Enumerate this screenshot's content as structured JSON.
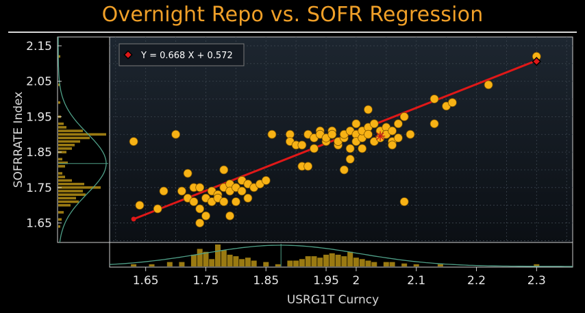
{
  "title": "Overnight Repo vs. SOFR Regression",
  "legend": {
    "label": "Y = 0.668 X + 0.572"
  },
  "colors": {
    "accent": "#f0a028",
    "points": "#f7b215",
    "regression_line": "#e01818",
    "histogram": "#9a7a12",
    "density_curve": "#4fa088",
    "panel_background": "#141a22"
  },
  "chart_data": {
    "type": "scatter",
    "title": "Overnight Repo vs. SOFR Regression",
    "xlabel": "USRG1T Curncy",
    "ylabel": "SOFRRATE Index",
    "xlim": [
      1.59,
      2.36
    ],
    "ylim": [
      1.595,
      2.175
    ],
    "xticks": [
      1.65,
      1.75,
      1.85,
      1.95,
      2,
      2.1,
      2.2,
      2.3
    ],
    "xtick_labels": [
      "1.65",
      "1.75",
      "1.85",
      "1.95",
      "2",
      "2.1",
      "2.2",
      "2.3"
    ],
    "yticks": [
      1.65,
      1.75,
      1.85,
      1.95,
      2.05,
      2.15
    ],
    "ytick_labels": [
      "1.65",
      "1.75",
      "1.85",
      "1.95",
      "2.05",
      "2.15"
    ],
    "grid": true,
    "legend_position": "top-left",
    "regression": {
      "slope": 0.668,
      "intercept": 0.572,
      "x_start": 1.63,
      "x_end": 2.3
    },
    "mean_marker": {
      "x": 2.04,
      "y": 1.895
    },
    "highlighted_point": {
      "x": 2.3,
      "y": 2.106
    },
    "points": [
      [
        1.63,
        1.88
      ],
      [
        1.64,
        1.7
      ],
      [
        1.67,
        1.69
      ],
      [
        1.68,
        1.74
      ],
      [
        1.7,
        1.9
      ],
      [
        1.71,
        1.74
      ],
      [
        1.72,
        1.72
      ],
      [
        1.72,
        1.79
      ],
      [
        1.73,
        1.75
      ],
      [
        1.73,
        1.71
      ],
      [
        1.74,
        1.69
      ],
      [
        1.74,
        1.75
      ],
      [
        1.74,
        1.65
      ],
      [
        1.75,
        1.67
      ],
      [
        1.75,
        1.72
      ],
      [
        1.76,
        1.74
      ],
      [
        1.76,
        1.71
      ],
      [
        1.77,
        1.73
      ],
      [
        1.77,
        1.72
      ],
      [
        1.78,
        1.75
      ],
      [
        1.78,
        1.71
      ],
      [
        1.78,
        1.8
      ],
      [
        1.79,
        1.76
      ],
      [
        1.79,
        1.74
      ],
      [
        1.79,
        1.67
      ],
      [
        1.8,
        1.75
      ],
      [
        1.8,
        1.71
      ],
      [
        1.81,
        1.77
      ],
      [
        1.81,
        1.74
      ],
      [
        1.82,
        1.76
      ],
      [
        1.82,
        1.72
      ],
      [
        1.83,
        1.75
      ],
      [
        1.84,
        1.76
      ],
      [
        1.85,
        1.77
      ],
      [
        1.86,
        1.9
      ],
      [
        1.89,
        1.9
      ],
      [
        1.89,
        1.88
      ],
      [
        1.9,
        1.87
      ],
      [
        1.91,
        1.81
      ],
      [
        1.91,
        1.87
      ],
      [
        1.92,
        1.9
      ],
      [
        1.92,
        1.81
      ],
      [
        1.93,
        1.89
      ],
      [
        1.93,
        1.86
      ],
      [
        1.94,
        1.91
      ],
      [
        1.94,
        1.9
      ],
      [
        1.95,
        1.88
      ],
      [
        1.95,
        1.89
      ],
      [
        1.96,
        1.91
      ],
      [
        1.96,
        1.9
      ],
      [
        1.97,
        1.87
      ],
      [
        1.97,
        1.88
      ],
      [
        1.98,
        1.89
      ],
      [
        1.98,
        1.9
      ],
      [
        1.98,
        1.8
      ],
      [
        1.99,
        1.91
      ],
      [
        1.99,
        1.83
      ],
      [
        1.99,
        1.86
      ],
      [
        2.0,
        1.9
      ],
      [
        2.0,
        1.88
      ],
      [
        2.0,
        1.93
      ],
      [
        2.01,
        1.89
      ],
      [
        2.01,
        1.91
      ],
      [
        2.01,
        1.86
      ],
      [
        2.02,
        1.92
      ],
      [
        2.02,
        1.9
      ],
      [
        2.02,
        1.97
      ],
      [
        2.03,
        1.93
      ],
      [
        2.03,
        1.88
      ],
      [
        2.04,
        1.91
      ],
      [
        2.04,
        1.89
      ],
      [
        2.05,
        1.92
      ],
      [
        2.05,
        1.9
      ],
      [
        2.06,
        1.91
      ],
      [
        2.06,
        1.88
      ],
      [
        2.06,
        1.87
      ],
      [
        2.07,
        1.93
      ],
      [
        2.07,
        1.89
      ],
      [
        2.08,
        1.95
      ],
      [
        2.08,
        1.71
      ],
      [
        2.09,
        1.9
      ],
      [
        2.13,
        1.93
      ],
      [
        2.13,
        2.0
      ],
      [
        2.15,
        1.98
      ],
      [
        2.16,
        1.99
      ],
      [
        2.22,
        2.04
      ],
      [
        2.3,
        2.12
      ]
    ],
    "y_histogram_bins": [
      [
        1.64,
        3
      ],
      [
        1.66,
        5
      ],
      [
        1.68,
        8
      ],
      [
        1.7,
        18
      ],
      [
        1.71,
        30
      ],
      [
        1.72,
        26
      ],
      [
        1.73,
        40
      ],
      [
        1.74,
        36
      ],
      [
        1.75,
        62
      ],
      [
        1.76,
        38
      ],
      [
        1.77,
        20
      ],
      [
        1.78,
        10
      ],
      [
        1.79,
        6
      ],
      [
        1.81,
        10
      ],
      [
        1.82,
        14
      ],
      [
        1.83,
        6
      ],
      [
        1.85,
        12
      ],
      [
        1.86,
        20
      ],
      [
        1.87,
        24
      ],
      [
        1.88,
        32
      ],
      [
        1.89,
        46
      ],
      [
        1.9,
        70
      ],
      [
        1.91,
        36
      ],
      [
        1.92,
        12
      ],
      [
        1.93,
        8
      ],
      [
        1.95,
        4
      ],
      [
        1.99,
        3
      ],
      [
        2.04,
        3
      ],
      [
        2.12,
        3
      ]
    ],
    "x_histogram_bins": [
      [
        1.63,
        3
      ],
      [
        1.66,
        3
      ],
      [
        1.69,
        6
      ],
      [
        1.71,
        6
      ],
      [
        1.73,
        16
      ],
      [
        1.74,
        24
      ],
      [
        1.75,
        20
      ],
      [
        1.76,
        10
      ],
      [
        1.77,
        30
      ],
      [
        1.78,
        22
      ],
      [
        1.79,
        16
      ],
      [
        1.8,
        14
      ],
      [
        1.81,
        10
      ],
      [
        1.82,
        12
      ],
      [
        1.83,
        8
      ],
      [
        1.85,
        6
      ],
      [
        1.87,
        3
      ],
      [
        1.89,
        8
      ],
      [
        1.9,
        8
      ],
      [
        1.91,
        10
      ],
      [
        1.92,
        14
      ],
      [
        1.93,
        14
      ],
      [
        1.94,
        12
      ],
      [
        1.95,
        16
      ],
      [
        1.96,
        18
      ],
      [
        1.97,
        16
      ],
      [
        1.98,
        14
      ],
      [
        1.99,
        20
      ],
      [
        2.0,
        12
      ],
      [
        2.01,
        10
      ],
      [
        2.02,
        8
      ],
      [
        2.03,
        6
      ],
      [
        2.05,
        6
      ],
      [
        2.06,
        6
      ],
      [
        2.08,
        4
      ],
      [
        2.1,
        3
      ],
      [
        2.14,
        3
      ],
      [
        2.3,
        3
      ]
    ],
    "y_density": {
      "mean": 1.818,
      "sd": 0.085
    },
    "x_density": {
      "mean": 1.875,
      "sd": 0.13
    }
  }
}
